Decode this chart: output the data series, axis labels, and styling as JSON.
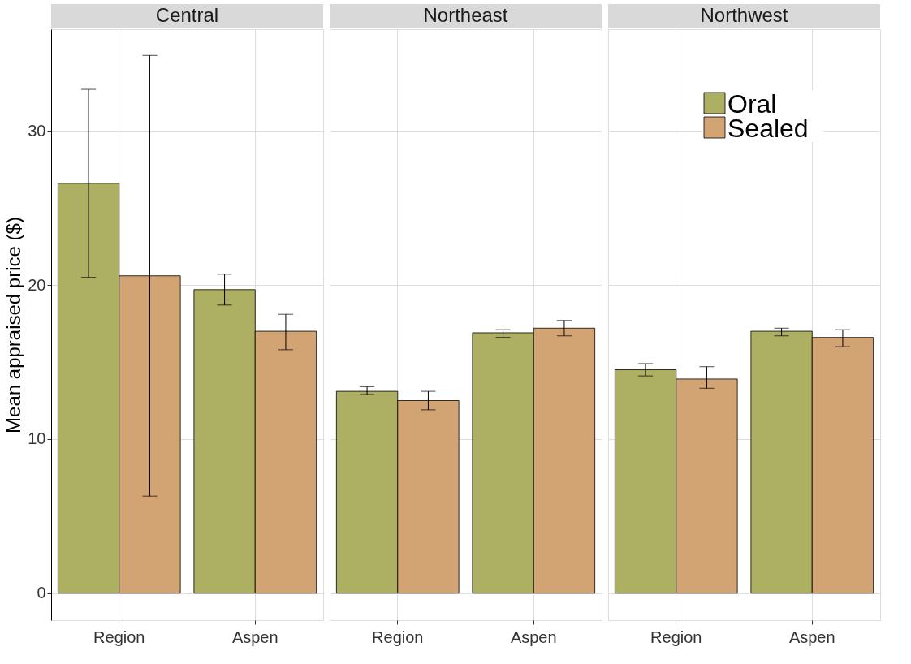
{
  "chart_data": [
    {
      "type": "bar",
      "title": "Central",
      "ylabel": "Mean appraised price ($)",
      "categories": [
        "Region",
        "Aspen"
      ],
      "ylim": [
        -1.75,
        36.6
      ],
      "yticks": [
        0,
        10,
        20,
        30
      ],
      "grid": true,
      "series": [
        {
          "color": "#adaf62",
          "values": [
            26.6,
            19.7
          ],
          "errors": [
            [
              20.5,
              32.7
            ],
            [
              18.7,
              20.7
            ]
          ]
        },
        {
          "color": "#d2a373",
          "values": [
            20.6,
            17.0
          ],
          "errors": [
            [
              6.3,
              34.9
            ],
            [
              15.8,
              18.1
            ]
          ]
        }
      ]
    },
    {
      "type": "bar",
      "title": "Northeast",
      "categories": [
        "Region",
        "Aspen"
      ],
      "ylim": [
        -1.75,
        36.6
      ],
      "yticks": [
        0,
        10,
        20,
        30
      ],
      "grid": true,
      "tick_labels": "x",
      "series": [
        {
          "color": "#adaf62",
          "values": [
            13.1,
            16.9
          ],
          "errors": [
            [
              12.9,
              13.4
            ],
            [
              16.6,
              17.1
            ]
          ]
        },
        {
          "color": "#d2a373",
          "values": [
            12.5,
            17.2
          ],
          "errors": [
            [
              11.9,
              13.1
            ],
            [
              16.7,
              17.7
            ]
          ]
        }
      ]
    },
    {
      "type": "bar",
      "title": "Northwest",
      "categories": [
        "Region",
        "Aspen"
      ],
      "ylim": [
        -1.75,
        36.6
      ],
      "yticks": [
        0,
        10,
        20,
        30
      ],
      "grid": true,
      "tick_labels": "x",
      "legend": "top right",
      "series": [
        {
          "name": "Oral",
          "color": "#adaf62",
          "values": [
            14.5,
            17.0
          ],
          "errors": [
            [
              14.1,
              14.9
            ],
            [
              16.7,
              17.2
            ]
          ]
        },
        {
          "name": "Sealed",
          "color": "#d2a373",
          "values": [
            13.9,
            16.6
          ],
          "errors": [
            [
              13.3,
              14.7
            ],
            [
              16.0,
              17.1
            ]
          ]
        }
      ]
    }
  ]
}
